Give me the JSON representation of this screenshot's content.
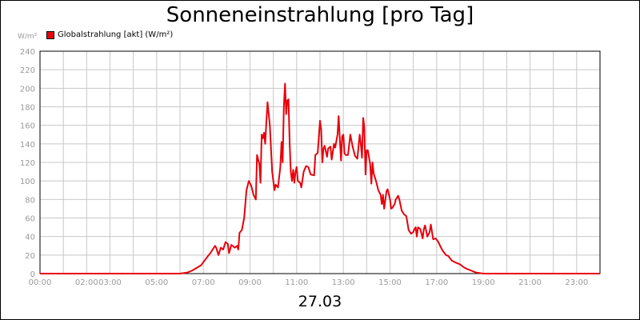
{
  "chart_data": {
    "type": "line",
    "title": "Sonneneinstrahlung [pro Tag]",
    "ylabel": "W/m²",
    "xlabel": "27.03",
    "ylim": [
      0,
      240
    ],
    "xlim_hours": [
      0,
      24
    ],
    "y_ticks": [
      0,
      20,
      40,
      60,
      80,
      100,
      120,
      140,
      160,
      180,
      200,
      220,
      240
    ],
    "x_ticks": [
      {
        "hour": 0,
        "label": "00:00"
      },
      {
        "hour": 2,
        "label": "02:00"
      },
      {
        "hour": 3,
        "label": "03:00"
      },
      {
        "hour": 5,
        "label": "05:00"
      },
      {
        "hour": 7,
        "label": "07:00"
      },
      {
        "hour": 9,
        "label": "09:00"
      },
      {
        "hour": 11,
        "label": "11:00"
      },
      {
        "hour": 13,
        "label": "13:00"
      },
      {
        "hour": 15,
        "label": "15:00"
      },
      {
        "hour": 17,
        "label": "17:00"
      },
      {
        "hour": 19,
        "label": "19:00"
      },
      {
        "hour": 21,
        "label": "21:00"
      },
      {
        "hour": 23,
        "label": "23:00"
      }
    ],
    "grid": true,
    "legend_position": "top-left",
    "series": [
      {
        "name": "Globalstrahlung [akt] (W/m²)",
        "color": "#e8000b",
        "points": [
          [
            0,
            0
          ],
          [
            6.0,
            0
          ],
          [
            6.3,
            1
          ],
          [
            6.5,
            3
          ],
          [
            6.7,
            6
          ],
          [
            6.9,
            9
          ],
          [
            7.05,
            14
          ],
          [
            7.2,
            19
          ],
          [
            7.3,
            22
          ],
          [
            7.4,
            26
          ],
          [
            7.5,
            30
          ],
          [
            7.55,
            28
          ],
          [
            7.65,
            20
          ],
          [
            7.75,
            28
          ],
          [
            7.85,
            26
          ],
          [
            7.95,
            34
          ],
          [
            8.05,
            32
          ],
          [
            8.1,
            22
          ],
          [
            8.2,
            31
          ],
          [
            8.35,
            28
          ],
          [
            8.45,
            30
          ],
          [
            8.5,
            26
          ],
          [
            8.55,
            44
          ],
          [
            8.65,
            47
          ],
          [
            8.75,
            60
          ],
          [
            8.85,
            90
          ],
          [
            8.95,
            100
          ],
          [
            9.05,
            95
          ],
          [
            9.15,
            85
          ],
          [
            9.25,
            80
          ],
          [
            9.3,
            128
          ],
          [
            9.4,
            118
          ],
          [
            9.45,
            98
          ],
          [
            9.5,
            150
          ],
          [
            9.55,
            146
          ],
          [
            9.6,
            152
          ],
          [
            9.65,
            140
          ],
          [
            9.7,
            163
          ],
          [
            9.75,
            185
          ],
          [
            9.85,
            160
          ],
          [
            9.95,
            110
          ],
          [
            10.05,
            90
          ],
          [
            10.1,
            96
          ],
          [
            10.2,
            93
          ],
          [
            10.3,
            115
          ],
          [
            10.35,
            142
          ],
          [
            10.4,
            120
          ],
          [
            10.45,
            180
          ],
          [
            10.5,
            205
          ],
          [
            10.55,
            172
          ],
          [
            10.6,
            187
          ],
          [
            10.65,
            188
          ],
          [
            10.7,
            140
          ],
          [
            10.75,
            110
          ],
          [
            10.8,
            100
          ],
          [
            10.85,
            112
          ],
          [
            10.9,
            98
          ],
          [
            10.95,
            110
          ],
          [
            11.0,
            115
          ],
          [
            11.05,
            100
          ],
          [
            11.15,
            98
          ],
          [
            11.2,
            93
          ],
          [
            11.3,
            110
          ],
          [
            11.4,
            116
          ],
          [
            11.5,
            115
          ],
          [
            11.6,
            107
          ],
          [
            11.75,
            106
          ],
          [
            11.8,
            128
          ],
          [
            11.9,
            130
          ],
          [
            12.0,
            165
          ],
          [
            12.05,
            155
          ],
          [
            12.1,
            120
          ],
          [
            12.15,
            135
          ],
          [
            12.2,
            138
          ],
          [
            12.3,
            126
          ],
          [
            12.35,
            135
          ],
          [
            12.45,
            137
          ],
          [
            12.5,
            123
          ],
          [
            12.6,
            140
          ],
          [
            12.65,
            136
          ],
          [
            12.75,
            150
          ],
          [
            12.8,
            170
          ],
          [
            12.85,
            145
          ],
          [
            12.9,
            122
          ],
          [
            12.95,
            148
          ],
          [
            13.0,
            150
          ],
          [
            13.05,
            130
          ],
          [
            13.1,
            128
          ],
          [
            13.2,
            128
          ],
          [
            13.3,
            150
          ],
          [
            13.4,
            137
          ],
          [
            13.5,
            127
          ],
          [
            13.6,
            124
          ],
          [
            13.7,
            150
          ],
          [
            13.75,
            140
          ],
          [
            13.8,
            125
          ],
          [
            13.85,
            168
          ],
          [
            13.9,
            158
          ],
          [
            13.95,
            107
          ],
          [
            14.0,
            133
          ],
          [
            14.05,
            133
          ],
          [
            14.15,
            118
          ],
          [
            14.2,
            97
          ],
          [
            14.25,
            120
          ],
          [
            14.3,
            108
          ],
          [
            14.4,
            100
          ],
          [
            14.5,
            90
          ],
          [
            14.6,
            85
          ],
          [
            14.65,
            75
          ],
          [
            14.7,
            85
          ],
          [
            14.75,
            70
          ],
          [
            14.85,
            89
          ],
          [
            14.9,
            91
          ],
          [
            15.0,
            80
          ],
          [
            15.05,
            70
          ],
          [
            15.1,
            71
          ],
          [
            15.2,
            75
          ],
          [
            15.25,
            80
          ],
          [
            15.35,
            84
          ],
          [
            15.4,
            80
          ],
          [
            15.5,
            68
          ],
          [
            15.6,
            64
          ],
          [
            15.7,
            62
          ],
          [
            15.8,
            47
          ],
          [
            15.9,
            43
          ],
          [
            16.0,
            45
          ],
          [
            16.05,
            48
          ],
          [
            16.1,
            50
          ],
          [
            16.15,
            40
          ],
          [
            16.2,
            50
          ],
          [
            16.3,
            48
          ],
          [
            16.4,
            38
          ],
          [
            16.45,
            48
          ],
          [
            16.5,
            52
          ],
          [
            16.6,
            40
          ],
          [
            16.7,
            45
          ],
          [
            16.75,
            53
          ],
          [
            16.85,
            37
          ],
          [
            16.95,
            38
          ],
          [
            17.05,
            35
          ],
          [
            17.15,
            30
          ],
          [
            17.25,
            25
          ],
          [
            17.4,
            20
          ],
          [
            17.5,
            19
          ],
          [
            17.65,
            14
          ],
          [
            17.8,
            12
          ],
          [
            18.0,
            10
          ],
          [
            18.15,
            7
          ],
          [
            18.3,
            5
          ],
          [
            18.5,
            3
          ],
          [
            18.7,
            1
          ],
          [
            19.0,
            0
          ],
          [
            24,
            0
          ]
        ]
      }
    ]
  }
}
